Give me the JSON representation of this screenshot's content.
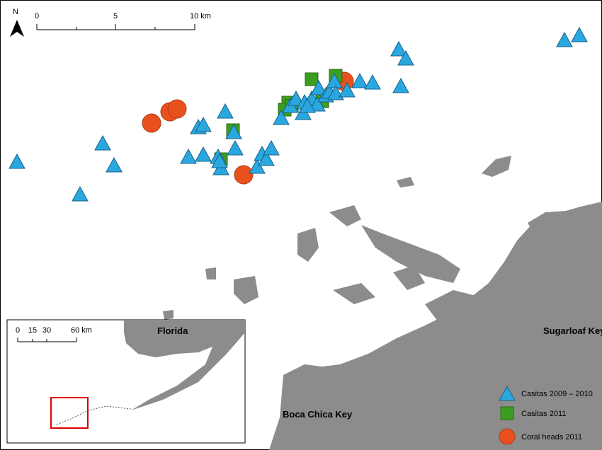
{
  "north_arrow": {
    "label": "N"
  },
  "scale_bar": {
    "ticks": [
      "0",
      "5",
      "10 km"
    ]
  },
  "labels": {
    "sugarloaf": "Sugarloaf Key",
    "boca_chica": "Boca Chica Key"
  },
  "inset": {
    "label": "Florida",
    "scale_bar": {
      "ticks": [
        "0",
        "15",
        "30",
        "60 km"
      ]
    }
  },
  "legend": {
    "items": [
      "Casitas 2009 – 2010",
      "Casitas 2011",
      "Coral heads 2011"
    ]
  }
}
